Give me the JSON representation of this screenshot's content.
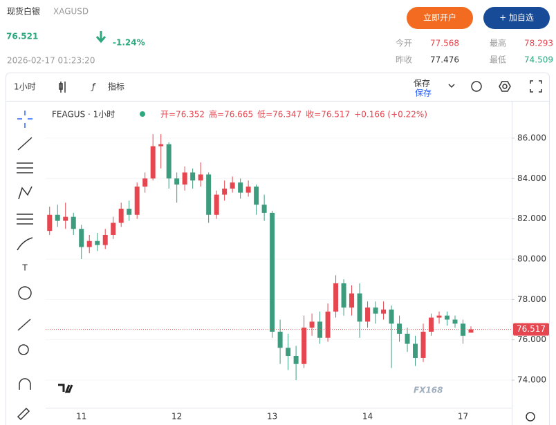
{
  "header": {
    "title": "现货白银",
    "symbol": "XAGUSD",
    "price": "76.521",
    "change": "-1.24%",
    "timestamp": "2026-02-17 01:23:20",
    "buttons": [
      "立即开户",
      "+ 加自选"
    ],
    "stats": [
      {
        "label": "今开",
        "value": "77.568"
      },
      {
        "label": "最高",
        "value": "78.293"
      },
      {
        "label": "昨收",
        "value": "77.476"
      },
      {
        "label": "最低",
        "value": "74.509"
      }
    ]
  },
  "toolbar": {
    "interval": "1小时",
    "indicators": "指标",
    "save": "保存",
    "save_sub": "保存"
  },
  "chart_data": {
    "type": "candlestick",
    "symbol_label": "FEAGUS · 1小时",
    "ohlc_labels": [
      "开=76.352",
      "高=76.665",
      "低=76.347",
      "收=76.517"
    ],
    "change_label": "+0.166 (+0.22%)",
    "categories": [
      null,
      null,
      null,
      null,
      "11",
      null,
      null,
      null,
      null,
      null,
      null,
      null,
      null,
      null,
      null,
      null,
      "12",
      null,
      null,
      null,
      null,
      null,
      null,
      null,
      null,
      null,
      null,
      null,
      "13",
      null,
      null,
      null,
      null,
      null,
      null,
      null,
      null,
      null,
      null,
      null,
      "14",
      null,
      null,
      null,
      null,
      null,
      null,
      null,
      null,
      null,
      null,
      null,
      "17",
      null
    ],
    "open": [
      81.4,
      82.2,
      81.9,
      82.1,
      81.5,
      80.6,
      80.9,
      80.7,
      81.2,
      81.8,
      82.5,
      82.2,
      83.6,
      84.0,
      85.6,
      85.7,
      84.0,
      83.7,
      84.3,
      83.9,
      84.2,
      82.2,
      83.2,
      83.5,
      83.8,
      83.3,
      83.6,
      82.7,
      82.3,
      76.4,
      75.6,
      75.2,
      74.8,
      76.6,
      76.9,
      76.1,
      77.4,
      78.8,
      77.6,
      78.3,
      76.9,
      77.6,
      77.3,
      77.5,
      76.8,
      76.3,
      75.8,
      75.1,
      76.4,
      77.1,
      77.2,
      77.0,
      76.8,
      76.352
    ],
    "high": [
      82.6,
      82.7,
      82.8,
      82.3,
      81.7,
      81.2,
      81.3,
      81.5,
      82.1,
      82.8,
      82.9,
      83.8,
      84.3,
      86.2,
      86.2,
      85.8,
      84.3,
      84.6,
      84.5,
      84.8,
      84.3,
      83.4,
      83.9,
      84.1,
      84.0,
      83.9,
      83.7,
      83.2,
      82.4,
      77.0,
      76.3,
      75.7,
      77.2,
      77.3,
      77.4,
      77.8,
      79.2,
      79.0,
      78.7,
      78.8,
      77.9,
      77.9,
      77.9,
      77.7,
      77.2,
      76.6,
      76.2,
      76.8,
      77.3,
      77.4,
      77.4,
      77.2,
      77.0,
      76.665
    ],
    "low": [
      81.2,
      81.6,
      81.5,
      81.2,
      80.0,
      80.3,
      80.4,
      80.5,
      81.0,
      81.6,
      81.9,
      82.0,
      83.3,
      83.9,
      84.5,
      83.5,
      82.8,
      83.4,
      83.5,
      83.6,
      81.8,
      82.0,
      82.9,
      83.3,
      83.0,
      83.1,
      82.2,
      81.9,
      76.1,
      74.8,
      74.5,
      74.0,
      74.6,
      76.2,
      75.8,
      75.9,
      77.1,
      77.2,
      77.2,
      76.1,
      76.6,
      76.8,
      77.0,
      74.6,
      75.9,
      75.4,
      74.7,
      74.9,
      76.2,
      76.8,
      76.7,
      76.6,
      75.8,
      76.347
    ],
    "close": [
      82.2,
      81.9,
      82.1,
      81.5,
      80.6,
      80.9,
      80.7,
      81.2,
      81.8,
      82.5,
      82.2,
      83.6,
      84.0,
      85.6,
      85.7,
      84.0,
      83.7,
      84.3,
      83.9,
      84.2,
      82.2,
      83.2,
      83.5,
      83.8,
      83.3,
      83.6,
      82.7,
      82.3,
      76.4,
      75.6,
      75.2,
      74.8,
      76.6,
      76.9,
      76.1,
      77.4,
      78.8,
      77.6,
      78.3,
      76.9,
      77.6,
      77.3,
      77.5,
      76.8,
      76.3,
      75.8,
      75.1,
      76.4,
      77.1,
      77.2,
      77.0,
      76.8,
      76.2,
      76.517
    ],
    "up_color": "#e5464f",
    "down_color": "#3d9c7e",
    "ylim": [
      72.63,
      87.78
    ],
    "yticks": [
      {
        "value": 74,
        "label": "74.000"
      },
      {
        "value": 76,
        "label": "76.000"
      },
      {
        "value": 78,
        "label": "78.000"
      },
      {
        "value": 80,
        "label": "80.000"
      },
      {
        "value": 82,
        "label": "82.000"
      },
      {
        "value": 84,
        "label": "84.000"
      },
      {
        "value": 86,
        "label": "86.000"
      }
    ],
    "grid": true,
    "last_price": 76.517,
    "watermark": "FX168"
  }
}
